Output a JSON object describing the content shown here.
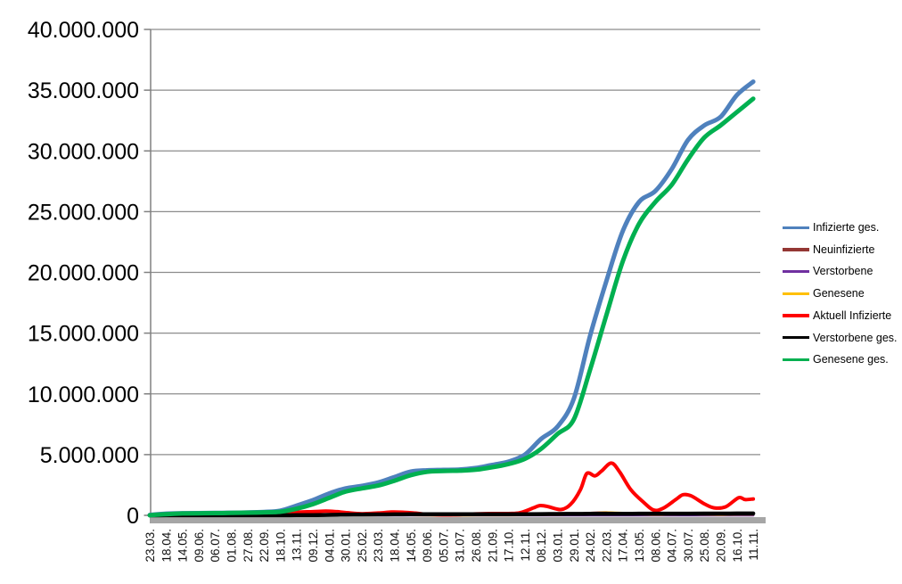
{
  "chart_data": {
    "type": "line",
    "title": "",
    "xlabel": "",
    "ylabel": "",
    "ylim": [
      0,
      40000000
    ],
    "grid": "horizontal",
    "legend_position": "right",
    "grid_color": "#8C8C8C",
    "axis_color": "#808080",
    "baseline_bar_color": "#A6A6A6",
    "background_color": "#FFFFFF",
    "y_tick_values": [
      0,
      5000000,
      10000000,
      15000000,
      20000000,
      25000000,
      30000000,
      35000000,
      40000000
    ],
    "y_tick_labels": [
      "0",
      "5.000.000",
      "10.000.000",
      "15.000.000",
      "20.000.000",
      "25.000.000",
      "30.000.000",
      "35.000.000",
      "40.000.000"
    ],
    "x_labels": [
      "23.03.",
      "18.04.",
      "14.05.",
      "09.06.",
      "06.07.",
      "01.08.",
      "27.08.",
      "22.09.",
      "18.10.",
      "13.11.",
      "09.12.",
      "04.01.",
      "30.01.",
      "25.02.",
      "23.03.",
      "18.04.",
      "14.05.",
      "09.06.",
      "05.07.",
      "31.07.",
      "26.08.",
      "21.09.",
      "17.10.",
      "12.11.",
      "08.12.",
      "03.01.",
      "29.01.",
      "24.02.",
      "22.03.",
      "17.04.",
      "13.05.",
      "08.06.",
      "04.07.",
      "30.07.",
      "25.08.",
      "20.09.",
      "16.10.",
      "11.11."
    ],
    "series": [
      {
        "name": "Infizierte ges.",
        "color": "#4F81BD",
        "width": 5,
        "values": [
          30000,
          140000,
          175000,
          185000,
          198000,
          212000,
          240000,
          278000,
          380000,
          800000,
          1250000,
          1800000,
          2220000,
          2420000,
          2700000,
          3150000,
          3600000,
          3710000,
          3740000,
          3770000,
          3900000,
          4150000,
          4420000,
          5000000,
          6300000,
          7300000,
          9600000,
          14800000,
          19300000,
          23400000,
          25800000,
          26700000,
          28500000,
          30900000,
          32100000,
          32800000,
          34600000,
          35700000
        ]
      },
      {
        "name": "Neuinfizierte",
        "color": "#943734",
        "width": 2.5,
        "values": [
          4000,
          2500,
          1000,
          500,
          400,
          900,
          1500,
          2000,
          7000,
          19000,
          25000,
          22000,
          14000,
          9000,
          16000,
          18000,
          12000,
          3500,
          1500,
          2600,
          8000,
          9000,
          10000,
          37000,
          55000,
          40000,
          120000,
          200000,
          250000,
          140000,
          65000,
          35000,
          90000,
          110000,
          60000,
          45000,
          95000,
          60000
        ]
      },
      {
        "name": "Verstorbene",
        "color": "#7030A0",
        "width": 2.5,
        "values": [
          60,
          180,
          220,
          130,
          40,
          30,
          25,
          20,
          40,
          150,
          400,
          700,
          850,
          550,
          300,
          220,
          180,
          90,
          40,
          30,
          40,
          60,
          80,
          180,
          350,
          380,
          250,
          230,
          280,
          250,
          150,
          80,
          100,
          140,
          130,
          120,
          130,
          140
        ]
      },
      {
        "name": "Genesene",
        "color": "#FFC000",
        "width": 2.5,
        "values": [
          2000,
          4500,
          2500,
          700,
          400,
          700,
          1200,
          1800,
          5000,
          14000,
          22000,
          24000,
          18000,
          10000,
          13000,
          17000,
          15000,
          6000,
          2000,
          2200,
          6500,
          8500,
          9500,
          25000,
          45000,
          45000,
          90000,
          160000,
          230000,
          195000,
          95000,
          42000,
          72000,
          102000,
          72000,
          42000,
          72000,
          70000
        ]
      },
      {
        "name": "Aktuell Infizierte",
        "color": "#FF0000",
        "width": 4,
        "x": [
          0,
          0.5,
          1,
          2,
          3,
          4,
          5,
          6,
          7,
          8,
          9,
          10,
          10.8,
          11.5,
          12,
          13,
          14,
          14.8,
          15.5,
          16.3,
          17,
          18,
          19,
          20,
          21,
          22,
          22.7,
          23.5,
          23.9,
          24.4,
          25.2,
          25.8,
          26.4,
          26.8,
          27.3,
          27.7,
          28.3,
          28.8,
          29.5,
          30.3,
          30.9,
          31.5,
          32.3,
          32.7,
          33.2,
          34,
          34.6,
          35.3,
          36.1,
          36.5,
          37
        ],
        "values": [
          25000,
          62000,
          45000,
          17000,
          9000,
          8000,
          10000,
          17000,
          22000,
          80000,
          260000,
          300000,
          345000,
          300000,
          230000,
          135000,
          190000,
          270000,
          260000,
          180000,
          85000,
          38000,
          62000,
          115000,
          150000,
          150000,
          210000,
          600000,
          800000,
          730000,
          480000,
          900000,
          2100000,
          3450000,
          3250000,
          3650000,
          4300000,
          3600000,
          2100000,
          1050000,
          430000,
          600000,
          1350000,
          1700000,
          1600000,
          950000,
          620000,
          700000,
          1450000,
          1300000,
          1350000
        ]
      },
      {
        "name": "Verstorbene ges.",
        "color": "#000000",
        "width": 4.5,
        "values": [
          2000,
          4000,
          8200,
          8800,
          9100,
          9200,
          9300,
          9500,
          9900,
          12000,
          20000,
          35000,
          56000,
          69000,
          75000,
          80000,
          86000,
          89000,
          90500,
          91500,
          92200,
          93000,
          94500,
          97500,
          104000,
          112000,
          117500,
          122000,
          126500,
          132000,
          137000,
          139800,
          141500,
          143000,
          145500,
          147500,
          150500,
          154000
        ]
      },
      {
        "name": "Genesene ges.",
        "color": "#00B050",
        "width": 5,
        "values": [
          10000,
          90000,
          155000,
          172000,
          187000,
          200000,
          218000,
          248000,
          295000,
          540000,
          920000,
          1440000,
          1950000,
          2220000,
          2450000,
          2850000,
          3300000,
          3580000,
          3650000,
          3680000,
          3760000,
          3960000,
          4230000,
          4650000,
          5480000,
          6700000,
          7900000,
          12000000,
          16500000,
          20900000,
          24000000,
          25800000,
          27200000,
          29300000,
          31100000,
          32100000,
          33200000,
          34300000
        ]
      }
    ]
  }
}
